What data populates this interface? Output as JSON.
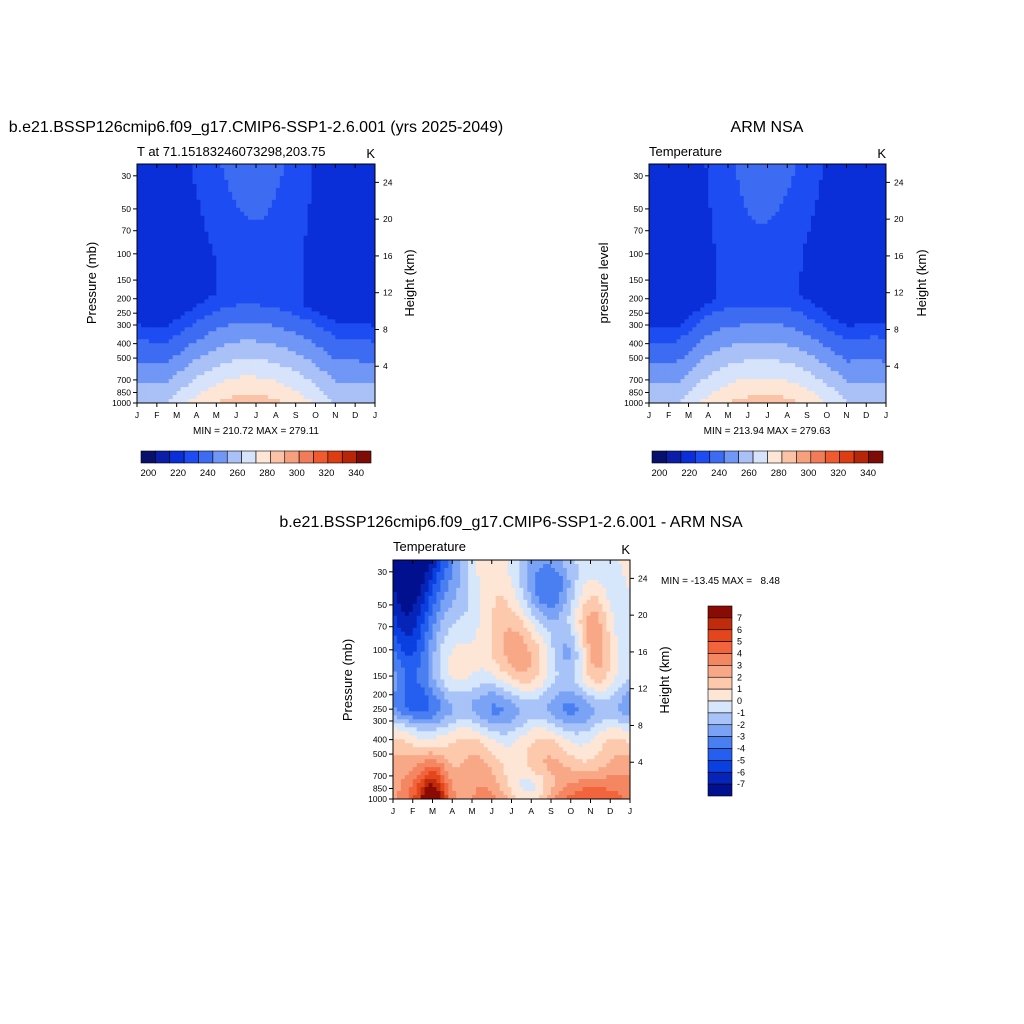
{
  "colors": {
    "abs_levels": [
      "#08106e",
      "#0a1ea8",
      "#0a2ed8",
      "#1d4df2",
      "#3d6cf2",
      "#7097f5",
      "#a9c1f7",
      "#d6e3fb",
      "#fde6d6",
      "#fbc2a6",
      "#f8a07e",
      "#f27c58",
      "#f05a2e",
      "#dc3d12",
      "#b82608",
      "#7e0b06"
    ],
    "diff_levels": [
      "#00108f",
      "#0624b8",
      "#0a3fe0",
      "#245ff0",
      "#4a7ff2",
      "#7aa3f5",
      "#a8c3f8",
      "#d6e6fb",
      "#fde6d6",
      "#fdc9ad",
      "#f9a887",
      "#f58662",
      "#f2653c",
      "#e2461c",
      "#c02c0a",
      "#8a0b03"
    ]
  },
  "chart_data": [
    {
      "type": "heatmap",
      "title": "b.e21.BSSP126cmip6.f09_g17.CMIP6-SSP1-2.6.001 (yrs 2025-2049)",
      "subtitle_left": "T at 71.15183246073298,203.75",
      "subtitle_right": "K",
      "ylabel": "Pressure (mb)",
      "ylabel_right": "Height (km)",
      "x_ticks": [
        "J",
        "F",
        "M",
        "A",
        "M",
        "J",
        "J",
        "A",
        "S",
        "O",
        "N",
        "D",
        "J"
      ],
      "y_ticks": [
        "30",
        "50",
        "70",
        "100",
        "150",
        "200",
        "250",
        "300",
        "400",
        "500",
        "700",
        "850",
        "1000"
      ],
      "y_tick_values": [
        30,
        50,
        70,
        100,
        150,
        200,
        250,
        300,
        400,
        500,
        700,
        850,
        1000
      ],
      "y_right_ticks": [
        "24",
        "20",
        "16",
        "12",
        "8",
        "4"
      ],
      "y_right_values": [
        24,
        20,
        16,
        12,
        8,
        4
      ],
      "ylim": [
        25,
        1000
      ],
      "stats": "MIN = 210.72 MAX = 279.11",
      "levels": [
        195,
        200,
        210,
        220,
        230,
        240,
        250,
        260,
        270,
        280,
        290,
        300,
        310,
        320,
        330,
        340
      ],
      "colorbar_labels": [
        "200",
        "220",
        "240",
        "260",
        "280",
        "300",
        "320",
        "340"
      ],
      "colorbar_values": [
        200,
        220,
        240,
        260,
        280,
        300,
        320,
        340
      ]
    },
    {
      "type": "heatmap",
      "title": "ARM NSA",
      "subtitle_left": "Temperature",
      "subtitle_right": "K",
      "ylabel": "pressure level",
      "ylabel_right": "Height (km)",
      "x_ticks": [
        "J",
        "F",
        "M",
        "A",
        "M",
        "J",
        "J",
        "A",
        "S",
        "O",
        "N",
        "D",
        "J"
      ],
      "y_ticks": [
        "30",
        "50",
        "70",
        "100",
        "150",
        "200",
        "250",
        "300",
        "400",
        "500",
        "700",
        "850",
        "1000"
      ],
      "y_tick_values": [
        30,
        50,
        70,
        100,
        150,
        200,
        250,
        300,
        400,
        500,
        700,
        850,
        1000
      ],
      "y_right_ticks": [
        "24",
        "20",
        "16",
        "12",
        "8",
        "4"
      ],
      "y_right_values": [
        24,
        20,
        16,
        12,
        8,
        4
      ],
      "ylim": [
        25,
        1000
      ],
      "stats": "MIN = 213.94 MAX = 279.63",
      "levels": [
        195,
        200,
        210,
        220,
        230,
        240,
        250,
        260,
        270,
        280,
        290,
        300,
        310,
        320,
        330,
        340
      ],
      "colorbar_labels": [
        "200",
        "220",
        "240",
        "260",
        "280",
        "300",
        "320",
        "340"
      ],
      "colorbar_values": [
        200,
        220,
        240,
        260,
        280,
        300,
        320,
        340
      ]
    },
    {
      "type": "heatmap",
      "title": "b.e21.BSSP126cmip6.f09_g17.CMIP6-SSP1-2.6.001 - ARM NSA",
      "subtitle_left": "Temperature",
      "subtitle_right": "K",
      "ylabel": "Pressure (mb)",
      "ylabel_right": "Height (km)",
      "x_ticks": [
        "J",
        "F",
        "M",
        "A",
        "M",
        "J",
        "J",
        "A",
        "S",
        "O",
        "N",
        "D",
        "J"
      ],
      "y_ticks": [
        "30",
        "50",
        "70",
        "100",
        "150",
        "200",
        "250",
        "300",
        "400",
        "500",
        "700",
        "850",
        "1000"
      ],
      "y_tick_values": [
        30,
        50,
        70,
        100,
        150,
        200,
        250,
        300,
        400,
        500,
        700,
        850,
        1000
      ],
      "y_right_ticks": [
        "24",
        "20",
        "16",
        "12",
        "8",
        "4"
      ],
      "y_right_values": [
        24,
        20,
        16,
        12,
        8,
        4
      ],
      "ylim": [
        25,
        1000
      ],
      "stats": "MIN = -13.45 MAX =   8.48",
      "levels": [
        -8,
        -7,
        -6,
        -5,
        -4,
        -3,
        -2,
        -1,
        0,
        1,
        2,
        3,
        4,
        5,
        6,
        7
      ],
      "colorbar_labels": [
        "7",
        "6",
        "5",
        "4",
        "3",
        "2",
        "1",
        "0",
        "-1",
        "-2",
        "-3",
        "-4",
        "-5",
        "-6",
        "-7"
      ],
      "colorbar_values": [
        7,
        6,
        5,
        4,
        3,
        2,
        1,
        0,
        -1,
        -2,
        -3,
        -4,
        -5,
        -6,
        -7
      ]
    }
  ]
}
